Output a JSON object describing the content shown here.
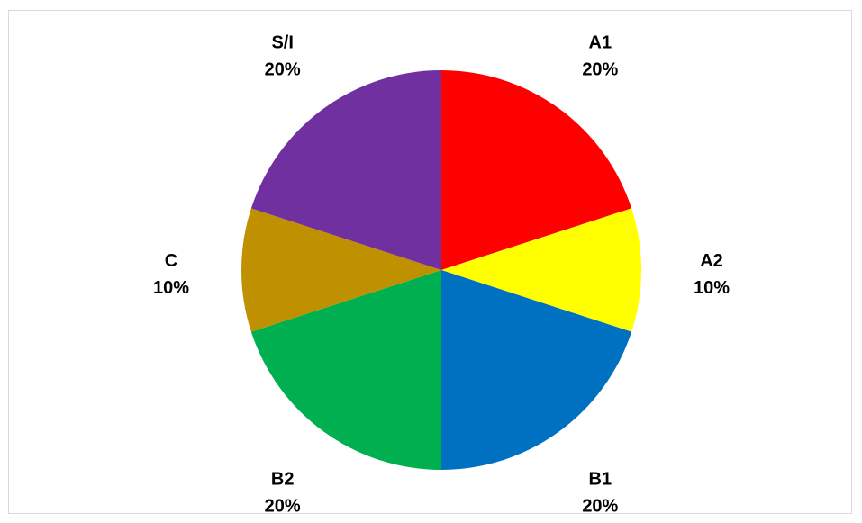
{
  "chart_data": {
    "type": "pie",
    "categories": [
      "A1",
      "A2",
      "B1",
      "B2",
      "C",
      "S/I"
    ],
    "values": [
      20,
      10,
      20,
      20,
      10,
      20
    ],
    "labels": [
      "20%",
      "10%",
      "20%",
      "20%",
      "10%",
      "20%"
    ],
    "colors": [
      "#ff0000",
      "#ffff00",
      "#0070c0",
      "#00b050",
      "#bf9000",
      "#7030a0"
    ],
    "title": "",
    "legend": "none",
    "start_angle_deg": 0,
    "direction": "clockwise"
  }
}
